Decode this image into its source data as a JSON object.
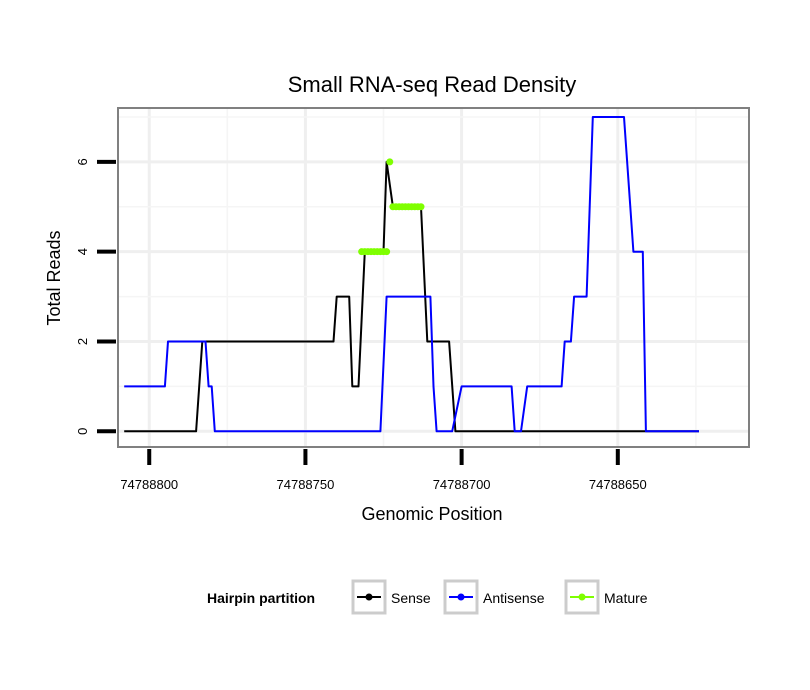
{
  "chart_data": {
    "type": "line",
    "title": "Small RNA-seq Read Density",
    "xlabel": "Genomic Position",
    "ylabel": "Total Reads",
    "xlim": [
      74788810,
      74788608
    ],
    "ylim": [
      -0.35,
      7.2
    ],
    "x_reversed": true,
    "x_ticks": [
      74788800,
      74788750,
      74788700,
      74788650
    ],
    "x_tick_labels": [
      "74788800",
      "74788750",
      "74788700",
      "74788650"
    ],
    "y_ticks": [
      0,
      2,
      4,
      6
    ],
    "y_tick_labels": [
      "0",
      "2",
      "4",
      "6"
    ],
    "grid": true,
    "legend": {
      "title": "Hairpin partition",
      "position": "bottom",
      "entries": [
        "Sense",
        "Antisense",
        "Mature"
      ]
    },
    "series": [
      {
        "name": "Sense",
        "color": "#000000",
        "points": [
          [
            74788808,
            0
          ],
          [
            74788785,
            0
          ],
          [
            74788783,
            2
          ],
          [
            74788741,
            2
          ],
          [
            74788740,
            3
          ],
          [
            74788736,
            3
          ],
          [
            74788735,
            1
          ],
          [
            74788733,
            1
          ],
          [
            74788731,
            4
          ],
          [
            74788725,
            4
          ],
          [
            74788724,
            6
          ],
          [
            74788722,
            5
          ],
          [
            74788713,
            5
          ],
          [
            74788711,
            2
          ],
          [
            74788704,
            2
          ],
          [
            74788702,
            0
          ],
          [
            74788624,
            0
          ]
        ]
      },
      {
        "name": "Antisense",
        "color": "#0000ff",
        "points": [
          [
            74788808,
            1
          ],
          [
            74788795,
            1
          ],
          [
            74788794,
            2
          ],
          [
            74788782,
            2
          ],
          [
            74788781,
            1
          ],
          [
            74788780,
            1
          ],
          [
            74788779,
            0
          ],
          [
            74788726,
            0
          ],
          [
            74788724,
            3
          ],
          [
            74788710,
            3
          ],
          [
            74788709,
            1
          ],
          [
            74788708,
            0
          ],
          [
            74788703,
            0
          ],
          [
            74788700,
            1
          ],
          [
            74788684,
            1
          ],
          [
            74788683,
            0
          ],
          [
            74788681,
            0
          ],
          [
            74788679,
            1
          ],
          [
            74788668,
            1
          ],
          [
            74788667,
            2
          ],
          [
            74788665,
            2
          ],
          [
            74788664,
            3
          ],
          [
            74788660,
            3
          ],
          [
            74788658,
            7
          ],
          [
            74788648,
            7
          ],
          [
            74788646,
            5
          ],
          [
            74788645,
            4
          ],
          [
            74788642,
            4
          ],
          [
            74788641,
            0
          ],
          [
            74788624,
            0
          ]
        ]
      },
      {
        "name": "Mature",
        "color": "#7fff00",
        "points": [
          [
            74788732,
            4
          ],
          [
            74788731,
            4
          ],
          [
            74788730,
            4
          ],
          [
            74788729,
            4
          ],
          [
            74788728,
            4
          ],
          [
            74788727,
            4
          ],
          [
            74788726,
            4
          ],
          [
            74788725,
            4
          ],
          [
            74788724,
            4
          ],
          [
            74788723,
            6
          ],
          [
            74788722,
            5
          ],
          [
            74788721,
            5
          ],
          [
            74788720,
            5
          ],
          [
            74788719,
            5
          ],
          [
            74788718,
            5
          ],
          [
            74788717,
            5
          ],
          [
            74788716,
            5
          ],
          [
            74788715,
            5
          ],
          [
            74788714,
            5
          ],
          [
            74788713,
            5
          ]
        ]
      }
    ]
  }
}
